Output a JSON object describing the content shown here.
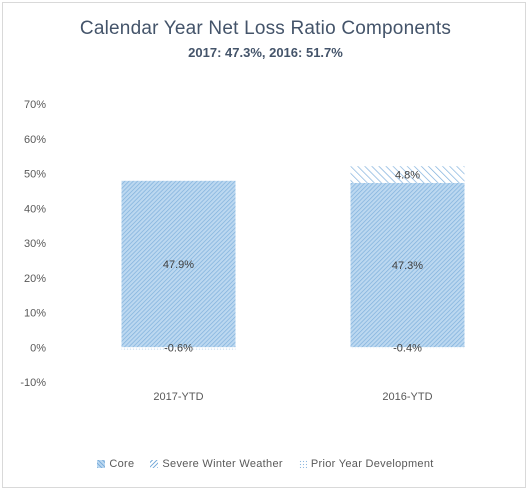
{
  "chart_data": {
    "type": "bar",
    "stacked": true,
    "title": "Calendar Year Net Loss Ratio Components",
    "subtitle": "2017: 47.3%, 2016: 51.7%",
    "categories": [
      "2017-YTD",
      "2016-YTD"
    ],
    "series": [
      {
        "name": "Core",
        "values": [
          47.9,
          47.3
        ],
        "labels": [
          "47.9%",
          "47.3%"
        ],
        "color": "#9dc3e6",
        "pattern": "dense-hatch"
      },
      {
        "name": "Severe Winter Weather",
        "values": [
          0,
          4.8
        ],
        "labels": [
          "",
          "4.8%"
        ],
        "color": "#9dc3e6",
        "pattern": "diagonal-hatch"
      },
      {
        "name": "Prior Year Development",
        "values": [
          -0.6,
          -0.4
        ],
        "labels": [
          "-0.6%",
          "-0.4%"
        ],
        "color": "#bdd7ee",
        "pattern": "dots"
      }
    ],
    "ylim": [
      -10,
      70
    ],
    "yticks": [
      -10,
      0,
      10,
      20,
      30,
      40,
      50,
      60,
      70
    ],
    "ytick_labels": [
      "-10%",
      "0%",
      "10%",
      "20%",
      "30%",
      "40%",
      "50%",
      "60%",
      "70%"
    ],
    "grid": false,
    "legend_position": "bottom"
  }
}
